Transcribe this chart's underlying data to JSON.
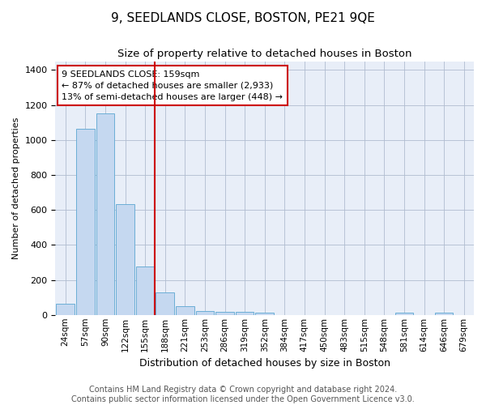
{
  "title": "9, SEEDLANDS CLOSE, BOSTON, PE21 9QE",
  "subtitle": "Size of property relative to detached houses in Boston",
  "xlabel": "Distribution of detached houses by size in Boston",
  "ylabel": "Number of detached properties",
  "categories": [
    "24sqm",
    "57sqm",
    "90sqm",
    "122sqm",
    "155sqm",
    "188sqm",
    "221sqm",
    "253sqm",
    "286sqm",
    "319sqm",
    "352sqm",
    "384sqm",
    "417sqm",
    "450sqm",
    "483sqm",
    "515sqm",
    "548sqm",
    "581sqm",
    "614sqm",
    "646sqm",
    "679sqm"
  ],
  "values": [
    65,
    1065,
    1150,
    635,
    275,
    130,
    48,
    20,
    18,
    18,
    15,
    0,
    0,
    0,
    0,
    0,
    0,
    15,
    0,
    15,
    0
  ],
  "bar_color": "#c5d8f0",
  "bar_edge_color": "#6baed6",
  "vline_x_index": 4.5,
  "vline_color": "#cc0000",
  "annotation_text": "9 SEEDLANDS CLOSE: 159sqm\n← 87% of detached houses are smaller (2,933)\n13% of semi-detached houses are larger (448) →",
  "annotation_box_color": "#ffffff",
  "annotation_box_edge_color": "#cc0000",
  "ylim": [
    0,
    1450
  ],
  "yticks": [
    0,
    200,
    400,
    600,
    800,
    1000,
    1200,
    1400
  ],
  "footer": "Contains HM Land Registry data © Crown copyright and database right 2024.\nContains public sector information licensed under the Open Government Licence v3.0.",
  "bg_color": "#e8eef8",
  "title_fontsize": 11,
  "subtitle_fontsize": 9.5,
  "footer_fontsize": 7,
  "annot_fontsize": 8
}
